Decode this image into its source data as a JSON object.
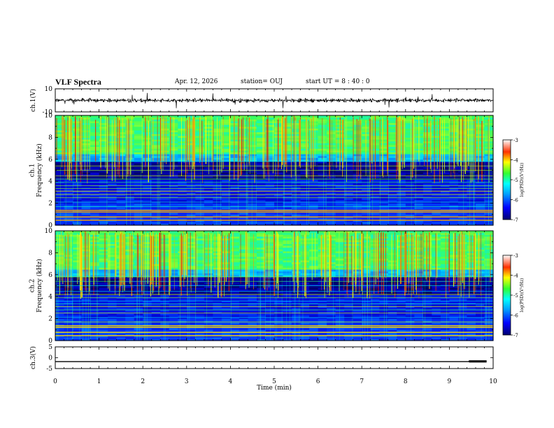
{
  "header": {
    "title": "VLF Spectra",
    "date": "Apr. 12, 2026",
    "station": "station= OUJ",
    "start_ut": "start UT =   8 : 40 : 0"
  },
  "chart_data": [
    {
      "type": "line",
      "name": "ch.1 waveform",
      "ylabel": "ch.1(V)",
      "ylim": [
        -10,
        10
      ],
      "yticks": [
        "10",
        "-10"
      ],
      "xlim": [
        0,
        10
      ],
      "baseline": 0,
      "noise_amplitude": 2,
      "color": "#000000"
    },
    {
      "type": "heatmap",
      "name": "ch.1 spectrogram",
      "ylabel": "ch.1\nFrequency (kHz)",
      "ylim": [
        0,
        10
      ],
      "yticks": [
        "0",
        "2",
        "4",
        "6",
        "8",
        "10"
      ],
      "xlim": [
        0,
        10
      ],
      "colorbar": {
        "label": "log(PSD)(V²/Hz)",
        "range": [
          -7,
          -3
        ],
        "ticks": [
          "-3",
          "-4",
          "-5",
          "-6",
          "-7"
        ]
      },
      "description": "Intense broadband sferics above ~6 kHz, darker band 4-6 kHz, narrowband horizontal lines below 4 kHz"
    },
    {
      "type": "heatmap",
      "name": "ch.2 spectrogram",
      "ylabel": "ch.2\nFrequency (kHz)",
      "ylim": [
        0,
        10
      ],
      "yticks": [
        "0",
        "2",
        "4",
        "6",
        "8",
        "10"
      ],
      "xlim": [
        0,
        10
      ],
      "colorbar": {
        "label": "log(PSD)(V²/Hz)",
        "range": [
          -7,
          -3
        ],
        "ticks": [
          "-3",
          "-4",
          "-5",
          "-6",
          "-7"
        ]
      },
      "description": "Similar to ch.1 with somewhat weaker low-frequency lines"
    },
    {
      "type": "line",
      "name": "ch.3",
      "ylabel": "ch.3(V)",
      "ylim": [
        -5,
        5
      ],
      "yticks": [
        "5",
        "0",
        "-5"
      ],
      "xlim": [
        0,
        10
      ],
      "x": [
        0,
        9.45,
        9.45,
        9.85
      ],
      "y": [
        -1.8,
        -1.8,
        -1.6,
        -1.6
      ],
      "color": "#000000"
    }
  ],
  "xaxis": {
    "label": "Time (min)",
    "ticks": [
      "0",
      "1",
      "2",
      "3",
      "4",
      "5",
      "6",
      "7",
      "8",
      "9",
      "10"
    ]
  }
}
